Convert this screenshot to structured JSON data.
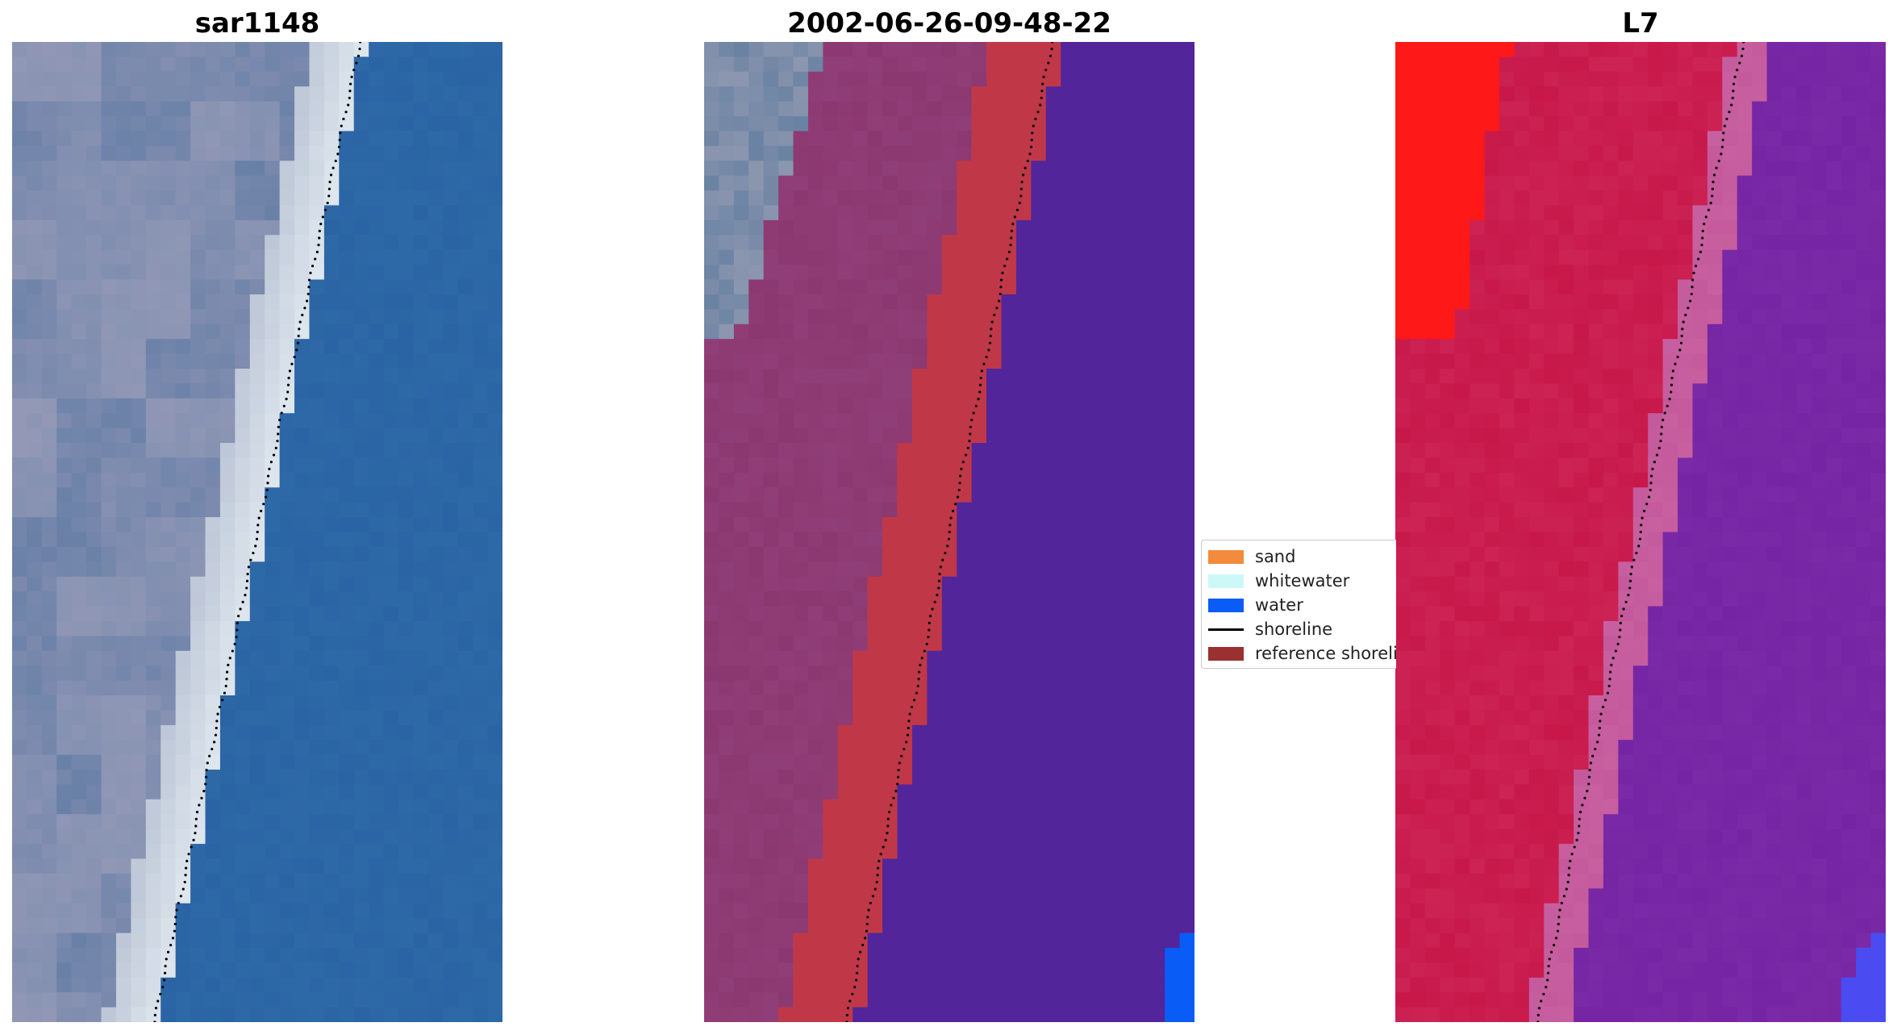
{
  "titles": {
    "left": "sar1148",
    "middle": "2002-06-26-09-48-22",
    "right": "L7"
  },
  "legend": {
    "items": [
      {
        "label": "sand",
        "color": "#f28b3c",
        "kind": "patch"
      },
      {
        "label": "whitewater",
        "color": "#cdf8f8",
        "kind": "patch"
      },
      {
        "label": "water",
        "color": "#0a5cf7",
        "kind": "patch"
      },
      {
        "label": "shoreline",
        "color": "#000000",
        "kind": "line"
      },
      {
        "label": "reference shoreline",
        "color": "#9b3031",
        "kind": "patch"
      }
    ]
  },
  "colors": {
    "rgb_land": "#8c96b4",
    "rgb_surf": "#e4ecf2",
    "rgb_water": "#2a64a4",
    "classified_land": "#8c3870",
    "classified_band": "#c03848",
    "classified_water": "#52259a",
    "classified_water_bright": "#0a5cf7",
    "l7_land": "#c8184a",
    "l7_land_bright": "#ff1818",
    "l7_transition": "#c860a0",
    "l7_water": "#7a2aa6",
    "l7_water_bright": "#4a4cf2",
    "shoreline": "#000000"
  }
}
